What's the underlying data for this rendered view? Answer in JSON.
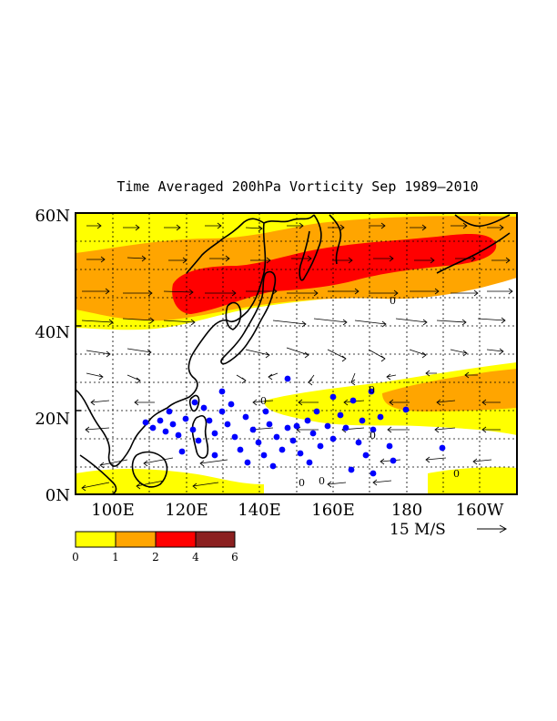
{
  "title": "Time Averaged 200hPa Vorticity  Sep 1989–2010",
  "map": {
    "lon_range": [
      90,
      210
    ],
    "lat_range": [
      0,
      60
    ],
    "lat_ticks": [
      {
        "value": 0,
        "label": "0N"
      },
      {
        "value": 20,
        "label": "20N"
      },
      {
        "value": 40,
        "label": "40N"
      },
      {
        "value": 60,
        "label": "60N"
      }
    ],
    "lon_ticks": [
      {
        "value": 100,
        "label": "100E"
      },
      {
        "value": 120,
        "label": "120E"
      },
      {
        "value": 140,
        "label": "140E"
      },
      {
        "value": 160,
        "label": "160E"
      },
      {
        "value": 180,
        "label": "180"
      },
      {
        "value": 200,
        "label": "160W"
      }
    ],
    "grid": "dashed",
    "contour_labels": [
      "0",
      "0",
      "0",
      "0",
      "0",
      "0",
      "0"
    ]
  },
  "vector_reference": {
    "label": "15 M/S",
    "arrow": "right-arrow-icon"
  },
  "colorbar": {
    "levels": [
      "0",
      "1",
      "2",
      "4",
      "6"
    ],
    "colors": [
      "#ffff00",
      "#ffa500",
      "#ff0000",
      "#8b2020"
    ]
  },
  "colors": {
    "background": "#ffffff",
    "track_points": "#0000ff",
    "coastline": "#000000"
  }
}
